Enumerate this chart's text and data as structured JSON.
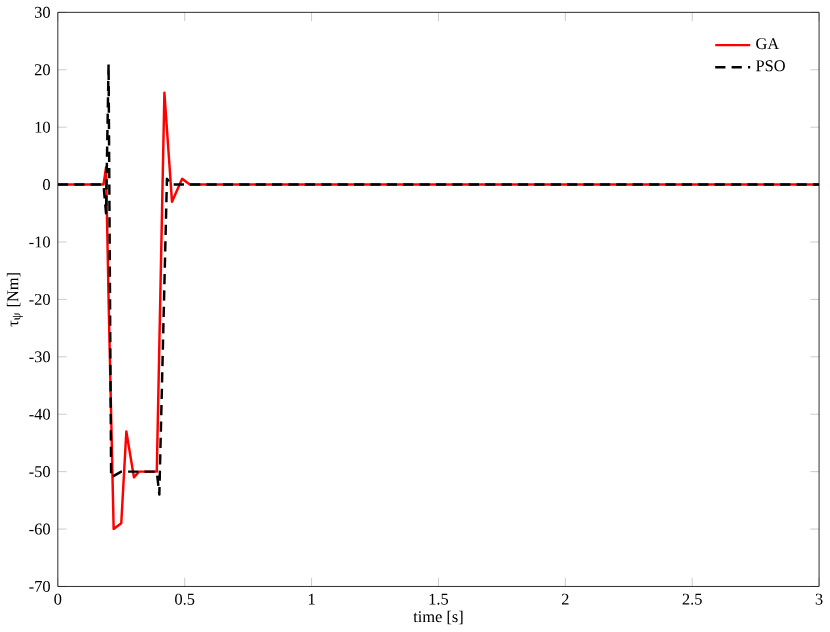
{
  "chart_data": {
    "type": "line",
    "xlabel": "time [s]",
    "ylabel": "τ$_{ψ}$ [Nm]",
    "xlim": [
      0,
      3
    ],
    "ylim": [
      -70,
      30
    ],
    "xticks": [
      0,
      0.5,
      1,
      1.5,
      2,
      2.5,
      3
    ],
    "yticks": [
      -70,
      -60,
      -50,
      -40,
      -30,
      -20,
      -10,
      0,
      10,
      20,
      30
    ],
    "legend": "top right",
    "grid": false,
    "series": [
      {
        "name": "GA",
        "color": "#ff0000",
        "line_style": "solid",
        "x": [
          0,
          0.18,
          0.19,
          0.2,
          0.22,
          0.25,
          0.27,
          0.3,
          0.32,
          0.39,
          0.42,
          0.45,
          0.49,
          0.52,
          3
        ],
        "values": [
          0,
          0,
          3,
          -20,
          -60,
          -59,
          -43,
          -51,
          -50,
          -50,
          16,
          -3,
          1,
          0,
          0
        ]
      },
      {
        "name": "PSO",
        "color": "#000000",
        "line_style": "dashed",
        "x": [
          0,
          0.18,
          0.19,
          0.2,
          0.21,
          0.25,
          0.39,
          0.4,
          0.43,
          0.45,
          3
        ],
        "values": [
          0,
          0,
          -5,
          21,
          -51,
          -50,
          -50,
          -54,
          1,
          0,
          0
        ]
      }
    ]
  }
}
